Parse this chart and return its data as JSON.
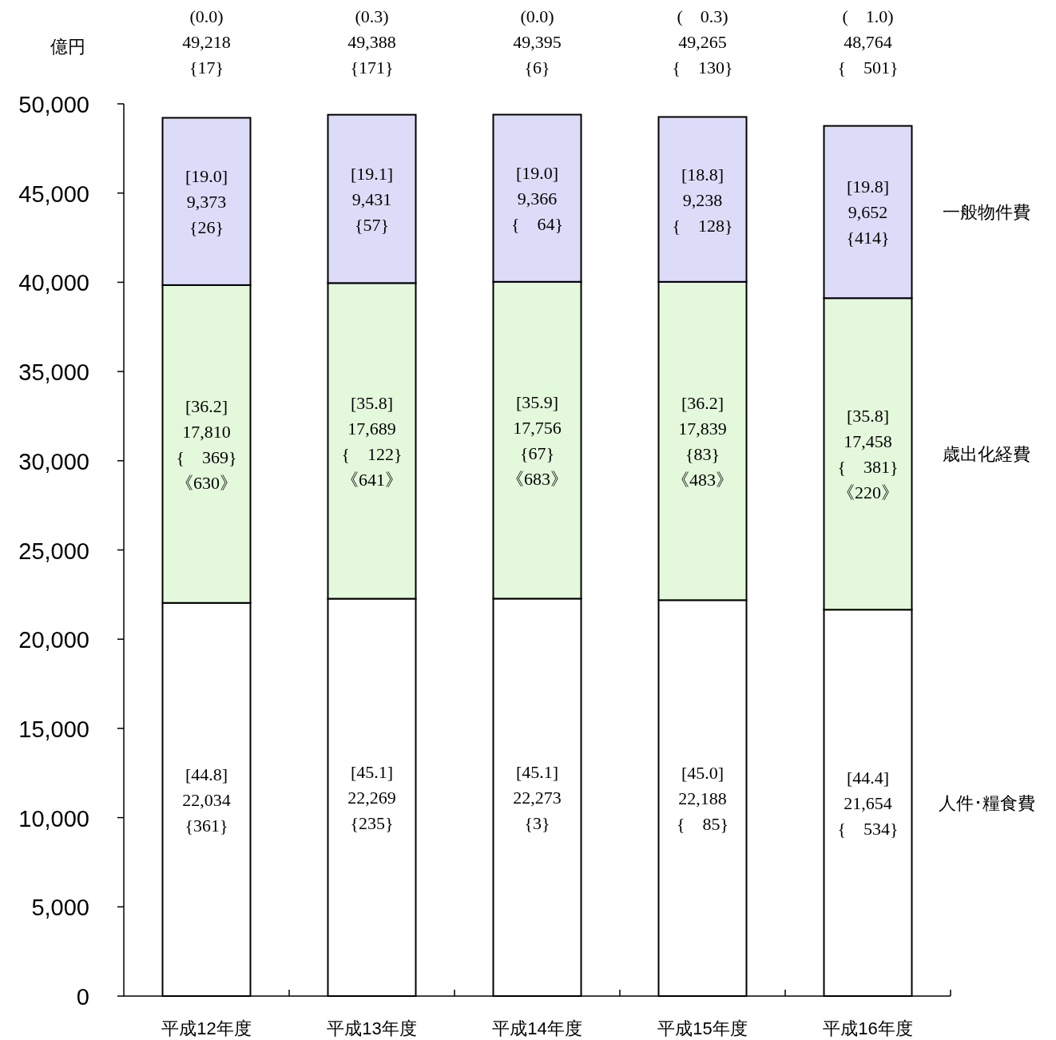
{
  "chart_data": {
    "type": "bar",
    "stacked": true,
    "ylabel": "億円",
    "categories": [
      "平成12年度",
      "平成13年度",
      "平成14年度",
      "平成15年度",
      "平成16年度"
    ],
    "ylim": [
      0,
      50000
    ],
    "yticks": [
      0,
      {
        "value": 5000,
        "label": "5,000"
      },
      {
        "value": 10000,
        "label": "10,000"
      },
      {
        "value": 15000,
        "label": "15,000"
      },
      {
        "value": 20000,
        "label": "20,000"
      },
      {
        "value": 25000,
        "label": "25,000"
      },
      {
        "value": 30000,
        "label": "30,000"
      },
      {
        "value": 35000,
        "label": "35,000"
      },
      {
        "value": 40000,
        "label": "40,000"
      },
      {
        "value": 45000,
        "label": "45,000"
      },
      {
        "value": 50000,
        "label": "50,000"
      }
    ],
    "series": [
      {
        "name": "人件･糧食費",
        "color": "#ffffff",
        "values": [
          22034,
          22269,
          22273,
          22188,
          21654
        ],
        "value_labels": [
          "[44.8]\n22,034\n{361}",
          "[45.1]\n22,269\n{235}",
          "[45.1]\n22,273\n{3}",
          "[45.0]\n22,188\n{    85}",
          "[44.4]\n21,654\n{    534}"
        ]
      },
      {
        "name": "歳出化経費",
        "color": "#e4f9dc",
        "values": [
          17810,
          17689,
          17756,
          17839,
          17458
        ],
        "value_labels": [
          "[36.2]\n17,810\n{    369}\n《630》",
          "[35.8]\n17,689\n{    122}\n《641》",
          "[35.9]\n17,756\n{67}\n《683》",
          "[36.2]\n17,839\n{83}\n《483》",
          "[35.8]\n17,458\n{    381}\n《220》"
        ]
      },
      {
        "name": "一般物件費",
        "color": "#dcdcf8",
        "values": [
          9373,
          9431,
          9366,
          9238,
          9652
        ],
        "value_labels": [
          "[19.0]\n9,373\n{26}",
          "[19.1]\n9,431\n{57}",
          "[19.0]\n9,366\n{    64}",
          "[18.8]\n9,238\n{    128}",
          "[19.8]\n9,652\n{414}"
        ]
      }
    ],
    "totals": [
      "(0.0)\n49,218\n{17}",
      "(0.3)\n49,388\n{171}",
      "(0.0)\n49,395\n{6}",
      "(    0.3)\n49,265\n{    130}",
      "(    1.0)\n48,764\n{    501}"
    ]
  }
}
